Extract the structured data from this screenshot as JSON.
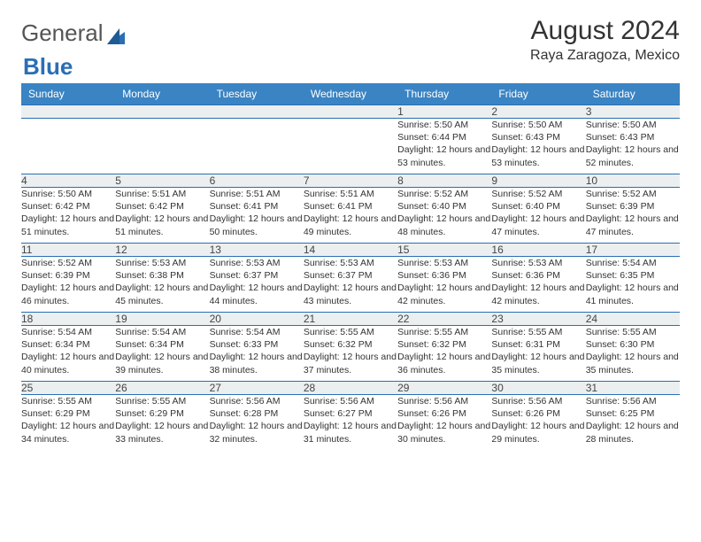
{
  "logo": {
    "text1": "General",
    "text2": "Blue"
  },
  "title": "August 2024",
  "location": "Raya Zaragoza, Mexico",
  "colors": {
    "header_bg": "#3a84c4",
    "header_text": "#ffffff",
    "daynum_bg": "#eceff0",
    "row_border": "#2a6fb5",
    "logo_blue": "#2a6fb5"
  },
  "fonts": {
    "title_size": 30,
    "location_size": 16,
    "th_size": 12,
    "daynum_size": 12,
    "detail_size": 10.5
  },
  "weekdays": [
    "Sunday",
    "Monday",
    "Tuesday",
    "Wednesday",
    "Thursday",
    "Friday",
    "Saturday"
  ],
  "weeks": [
    {
      "nums": [
        "",
        "",
        "",
        "",
        "1",
        "2",
        "3"
      ],
      "cells": [
        "",
        "",
        "",
        "",
        "Sunrise: 5:50 AM\nSunset: 6:44 PM\nDaylight: 12 hours and 53 minutes.",
        "Sunrise: 5:50 AM\nSunset: 6:43 PM\nDaylight: 12 hours and 53 minutes.",
        "Sunrise: 5:50 AM\nSunset: 6:43 PM\nDaylight: 12 hours and 52 minutes."
      ]
    },
    {
      "nums": [
        "4",
        "5",
        "6",
        "7",
        "8",
        "9",
        "10"
      ],
      "cells": [
        "Sunrise: 5:50 AM\nSunset: 6:42 PM\nDaylight: 12 hours and 51 minutes.",
        "Sunrise: 5:51 AM\nSunset: 6:42 PM\nDaylight: 12 hours and 51 minutes.",
        "Sunrise: 5:51 AM\nSunset: 6:41 PM\nDaylight: 12 hours and 50 minutes.",
        "Sunrise: 5:51 AM\nSunset: 6:41 PM\nDaylight: 12 hours and 49 minutes.",
        "Sunrise: 5:52 AM\nSunset: 6:40 PM\nDaylight: 12 hours and 48 minutes.",
        "Sunrise: 5:52 AM\nSunset: 6:40 PM\nDaylight: 12 hours and 47 minutes.",
        "Sunrise: 5:52 AM\nSunset: 6:39 PM\nDaylight: 12 hours and 47 minutes."
      ]
    },
    {
      "nums": [
        "11",
        "12",
        "13",
        "14",
        "15",
        "16",
        "17"
      ],
      "cells": [
        "Sunrise: 5:52 AM\nSunset: 6:39 PM\nDaylight: 12 hours and 46 minutes.",
        "Sunrise: 5:53 AM\nSunset: 6:38 PM\nDaylight: 12 hours and 45 minutes.",
        "Sunrise: 5:53 AM\nSunset: 6:37 PM\nDaylight: 12 hours and 44 minutes.",
        "Sunrise: 5:53 AM\nSunset: 6:37 PM\nDaylight: 12 hours and 43 minutes.",
        "Sunrise: 5:53 AM\nSunset: 6:36 PM\nDaylight: 12 hours and 42 minutes.",
        "Sunrise: 5:53 AM\nSunset: 6:36 PM\nDaylight: 12 hours and 42 minutes.",
        "Sunrise: 5:54 AM\nSunset: 6:35 PM\nDaylight: 12 hours and 41 minutes."
      ]
    },
    {
      "nums": [
        "18",
        "19",
        "20",
        "21",
        "22",
        "23",
        "24"
      ],
      "cells": [
        "Sunrise: 5:54 AM\nSunset: 6:34 PM\nDaylight: 12 hours and 40 minutes.",
        "Sunrise: 5:54 AM\nSunset: 6:34 PM\nDaylight: 12 hours and 39 minutes.",
        "Sunrise: 5:54 AM\nSunset: 6:33 PM\nDaylight: 12 hours and 38 minutes.",
        "Sunrise: 5:55 AM\nSunset: 6:32 PM\nDaylight: 12 hours and 37 minutes.",
        "Sunrise: 5:55 AM\nSunset: 6:32 PM\nDaylight: 12 hours and 36 minutes.",
        "Sunrise: 5:55 AM\nSunset: 6:31 PM\nDaylight: 12 hours and 35 minutes.",
        "Sunrise: 5:55 AM\nSunset: 6:30 PM\nDaylight: 12 hours and 35 minutes."
      ]
    },
    {
      "nums": [
        "25",
        "26",
        "27",
        "28",
        "29",
        "30",
        "31"
      ],
      "cells": [
        "Sunrise: 5:55 AM\nSunset: 6:29 PM\nDaylight: 12 hours and 34 minutes.",
        "Sunrise: 5:55 AM\nSunset: 6:29 PM\nDaylight: 12 hours and 33 minutes.",
        "Sunrise: 5:56 AM\nSunset: 6:28 PM\nDaylight: 12 hours and 32 minutes.",
        "Sunrise: 5:56 AM\nSunset: 6:27 PM\nDaylight: 12 hours and 31 minutes.",
        "Sunrise: 5:56 AM\nSunset: 6:26 PM\nDaylight: 12 hours and 30 minutes.",
        "Sunrise: 5:56 AM\nSunset: 6:26 PM\nDaylight: 12 hours and 29 minutes.",
        "Sunrise: 5:56 AM\nSunset: 6:25 PM\nDaylight: 12 hours and 28 minutes."
      ]
    }
  ]
}
